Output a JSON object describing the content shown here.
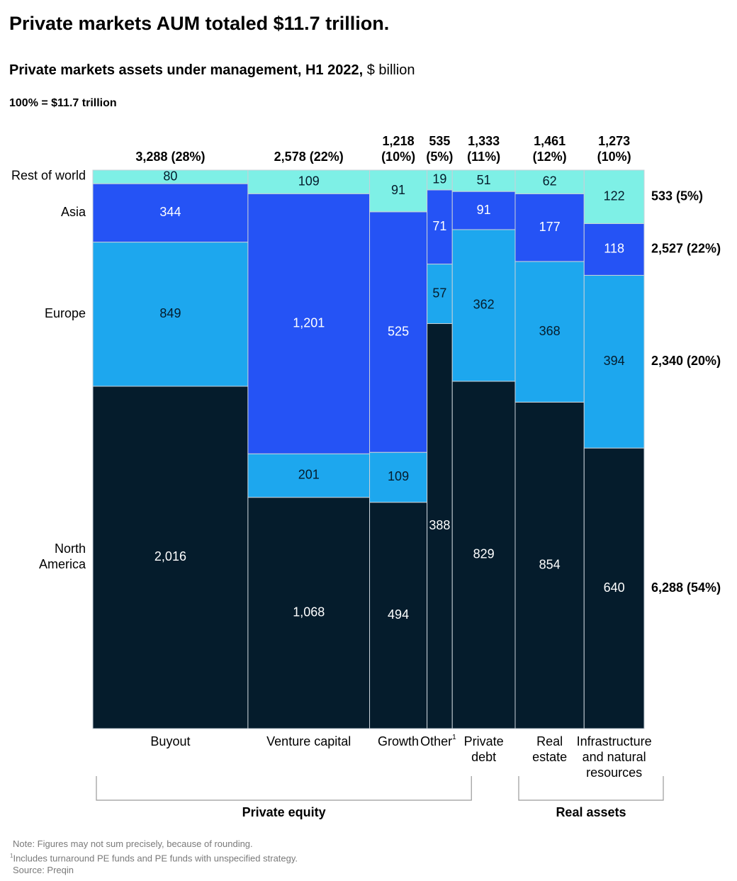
{
  "headline": "Private markets AUM totaled $11.7 trillion.",
  "subtitle": {
    "main": "Private markets assets under management, H1 2022,",
    "unit": " $ billion"
  },
  "base_label": "100% = $11.7 trillion",
  "colors": {
    "rest_of_world": "#7ef0e6",
    "asia": "#2553f5",
    "europe": "#1da7ee",
    "north_america": "#051c2c",
    "divider": "#c8d0d8",
    "bracket": "#9a9a9a"
  },
  "chart_data": {
    "type": "marimekko",
    "total_label": "100% = $11.7 trillion",
    "unit": "$ billion",
    "segments": [
      "North America",
      "Europe",
      "Asia",
      "Rest of world"
    ],
    "segment_labels": [
      [
        "North",
        "America"
      ],
      [
        "Europe"
      ],
      [
        "Asia"
      ],
      [
        "Rest of world"
      ]
    ],
    "columns": [
      {
        "name": "Buyout",
        "label_lines": [
          "Buyout"
        ],
        "total": 3288,
        "total_lines": [
          "3,288 (28%)"
        ],
        "values": [
          2016,
          849,
          344,
          80
        ],
        "value_labels": [
          "2,016",
          "849",
          "344",
          "80"
        ]
      },
      {
        "name": "Venture capital",
        "label_lines": [
          "Venture capital"
        ],
        "total": 2578,
        "total_lines": [
          "2,578 (22%)"
        ],
        "values": [
          1068,
          201,
          1201,
          109
        ],
        "value_labels": [
          "1,068",
          "201",
          "1,201",
          "109"
        ]
      },
      {
        "name": "Growth",
        "label_lines": [
          "Growth"
        ],
        "total": 1218,
        "total_lines": [
          "1,218",
          "(10%)"
        ],
        "values": [
          494,
          109,
          525,
          91
        ],
        "value_labels": [
          "494",
          "109",
          "525",
          "91"
        ]
      },
      {
        "name": "Other",
        "label_lines": [
          "Other"
        ],
        "footnote": "1",
        "total": 535,
        "total_lines": [
          "535",
          "(5%)"
        ],
        "values": [
          388,
          57,
          71,
          19
        ],
        "value_labels": [
          "388",
          "57",
          "71",
          "19"
        ]
      },
      {
        "name": "Private debt",
        "label_lines": [
          "Private",
          "debt"
        ],
        "total": 1333,
        "total_lines": [
          "1,333",
          "(11%)"
        ],
        "values": [
          829,
          362,
          91,
          51
        ],
        "value_labels": [
          "829",
          "362",
          "91",
          "51"
        ]
      },
      {
        "name": "Real estate",
        "label_lines": [
          "Real",
          "estate"
        ],
        "total": 1461,
        "total_lines": [
          "1,461",
          "(12%)"
        ],
        "values": [
          854,
          368,
          177,
          62
        ],
        "value_labels": [
          "854",
          "368",
          "177",
          "62"
        ]
      },
      {
        "name": "Infrastructure and natural resources",
        "label_lines": [
          "Infrastructure",
          "and natural",
          "resources"
        ],
        "total": 1273,
        "total_lines": [
          "1,273",
          "(10%)"
        ],
        "values": [
          640,
          394,
          118,
          122
        ],
        "value_labels": [
          "640",
          "394",
          "118",
          "122"
        ]
      }
    ],
    "segment_totals": [
      {
        "segment": "North America",
        "value": 6288,
        "label": "6,288 (54%)"
      },
      {
        "segment": "Europe",
        "value": 2340,
        "label": "2,340 (20%)"
      },
      {
        "segment": "Asia",
        "value": 2527,
        "label": "2,527 (22%)"
      },
      {
        "segment": "Rest of world",
        "value": 533,
        "label": "533 (5%)"
      }
    ],
    "groups": [
      {
        "name": "Private equity",
        "columns": [
          "Buyout",
          "Venture capital",
          "Growth",
          "Other"
        ]
      },
      {
        "name": "Real assets",
        "columns": [
          "Real estate",
          "Infrastructure and natural resources"
        ]
      }
    ]
  },
  "notes": {
    "note": "Note: Figures may not sum precisely, because of rounding.",
    "footnote_marker": "1",
    "footnote": "Includes turnaround PE funds and PE funds with unspecified strategy.",
    "source": "Source: Preqin"
  }
}
